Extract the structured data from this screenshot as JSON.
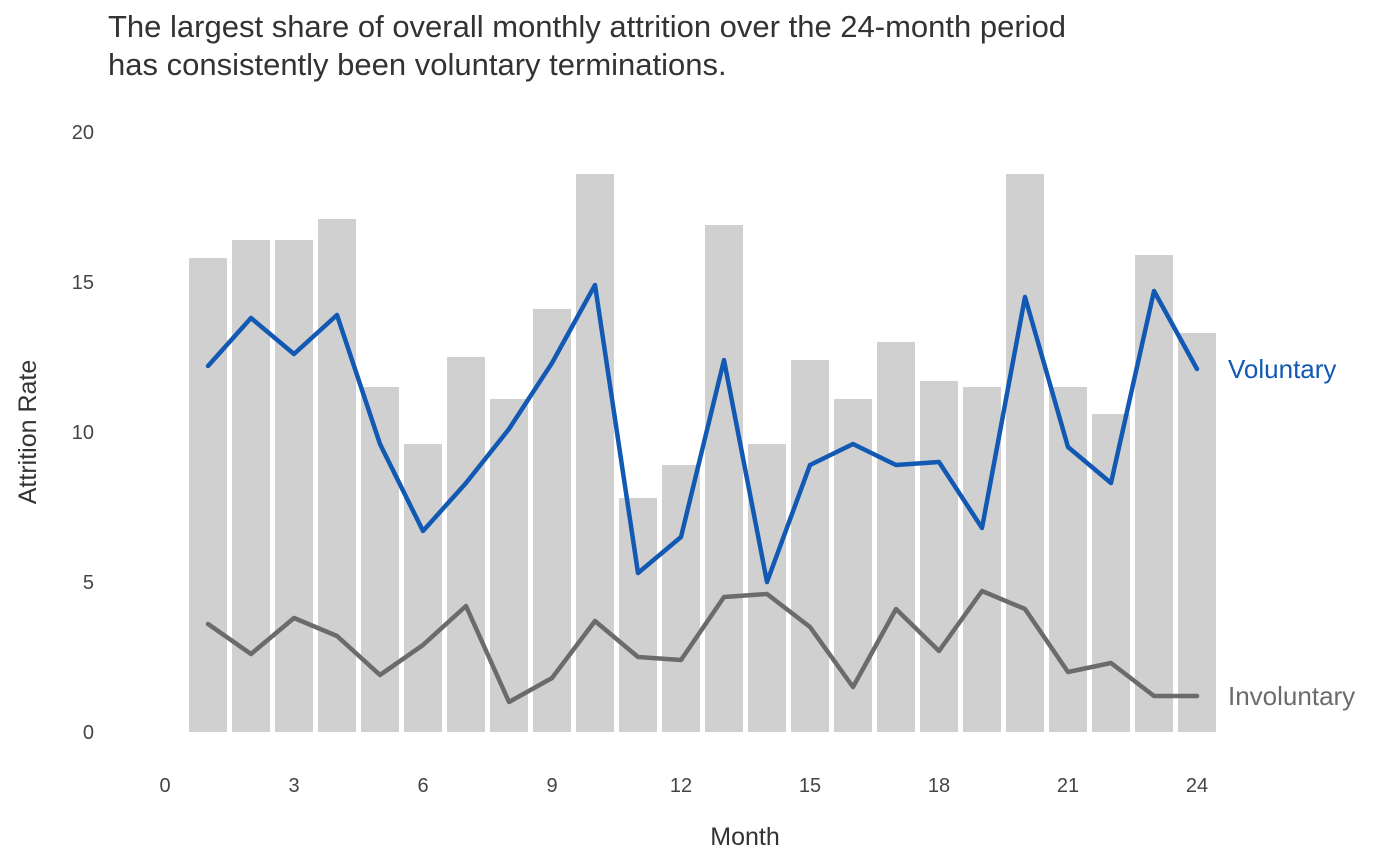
{
  "chart_data": {
    "type": "bar+line",
    "title_lines": [
      "The largest share of overall monthly attrition over the 24-month period",
      "has consistently been voluntary terminations."
    ],
    "xlabel": "Month",
    "ylabel": "Attrition Rate",
    "xlim": [
      0,
      24.5
    ],
    "ylim": [
      0,
      20
    ],
    "x_ticks": [
      0,
      3,
      6,
      9,
      12,
      15,
      18,
      21,
      24
    ],
    "y_ticks": [
      0,
      5,
      10,
      15,
      20
    ],
    "grid": false,
    "x": [
      1,
      2,
      3,
      4,
      5,
      6,
      7,
      8,
      9,
      10,
      11,
      12,
      13,
      14,
      15,
      16,
      17,
      18,
      19,
      20,
      21,
      22,
      23,
      24
    ],
    "bar_values": [
      15.8,
      16.4,
      16.4,
      17.1,
      11.5,
      9.6,
      12.5,
      11.1,
      14.1,
      18.6,
      7.8,
      8.9,
      16.9,
      9.6,
      12.4,
      11.1,
      13.0,
      11.7,
      11.5,
      18.6,
      11.5,
      10.6,
      15.9,
      13.3
    ],
    "bar_color": "#d0d0d0",
    "series": [
      {
        "name": "Voluntary",
        "color": "#1159b2",
        "values": [
          12.2,
          13.8,
          12.6,
          13.9,
          9.6,
          6.7,
          8.3,
          10.1,
          12.3,
          14.9,
          5.3,
          6.5,
          12.4,
          5.0,
          8.9,
          9.6,
          8.9,
          9.0,
          6.8,
          14.5,
          9.5,
          8.3,
          14.7,
          12.1
        ]
      },
      {
        "name": "Involuntary",
        "color": "#6b6b6b",
        "values": [
          3.6,
          2.6,
          3.8,
          3.2,
          1.9,
          2.9,
          4.2,
          1.0,
          1.8,
          3.7,
          2.5,
          2.4,
          4.5,
          4.6,
          3.5,
          1.5,
          4.1,
          2.7,
          4.7,
          4.1,
          2.0,
          2.3,
          1.2,
          1.2
        ]
      }
    ]
  }
}
